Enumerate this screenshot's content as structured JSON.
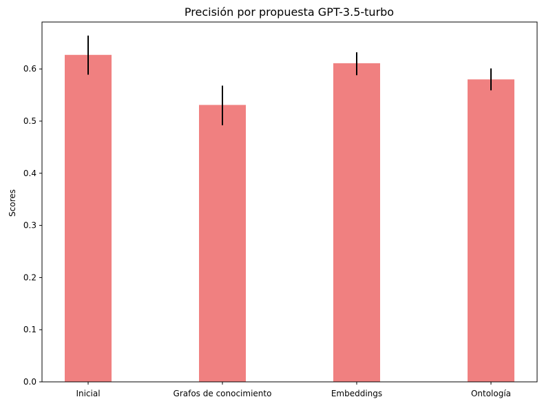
{
  "chart_data": {
    "type": "bar",
    "title": "Precisión por propuesta GPT-3.5-turbo",
    "xlabel": "",
    "ylabel": "Scores",
    "categories": [
      "Inicial",
      "Grafos de conocimiento",
      "Embeddings",
      "Ontología"
    ],
    "values": [
      0.627,
      0.531,
      0.611,
      0.58
    ],
    "error_low": [
      0.589,
      0.492,
      0.588,
      0.559
    ],
    "error_high": [
      0.664,
      0.568,
      0.632,
      0.601
    ],
    "ylim": [
      0,
      0.69
    ],
    "yticks": [
      0.0,
      0.1,
      0.2,
      0.3,
      0.4,
      0.5,
      0.6
    ],
    "ytick_labels": [
      "0.0",
      "0.1",
      "0.2",
      "0.3",
      "0.4",
      "0.5",
      "0.6"
    ],
    "grid": false,
    "legend": "none",
    "bar_color": "#f08080",
    "error_color": "#000000"
  }
}
